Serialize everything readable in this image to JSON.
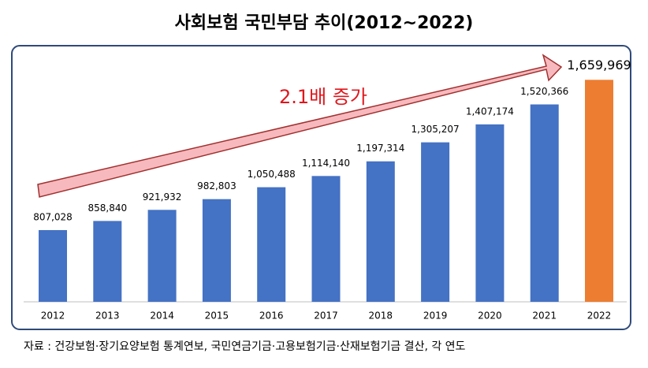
{
  "chart_data": {
    "type": "bar",
    "title": "사회보험 국민부담 추이(2012~2022)",
    "annotation": "2.1배 증가",
    "source": "자료 : 건강보험·장기요양보험 통계연보, 국민연금기금·고용보험기금·산재보험기금 결산, 각 연도",
    "categories": [
      "2012",
      "2013",
      "2014",
      "2015",
      "2016",
      "2017",
      "2018",
      "2019",
      "2020",
      "2021",
      "2022"
    ],
    "values": [
      807028,
      858840,
      921932,
      982803,
      1050488,
      1114140,
      1197314,
      1305207,
      1407174,
      1520366,
      1659969
    ],
    "value_labels": [
      "807,028",
      "858,840",
      "921,932",
      "982,803",
      "1,050,488",
      "1,114,140",
      "1,197,314",
      "1,305,207",
      "1,407,174",
      "1,520,366",
      "1,659,969"
    ],
    "colors": [
      "#4472c4",
      "#4472c4",
      "#4472c4",
      "#4472c4",
      "#4472c4",
      "#4472c4",
      "#4472c4",
      "#4472c4",
      "#4472c4",
      "#4472c4",
      "#ed7d31"
    ],
    "ylim": [
      400000,
      1800000
    ]
  }
}
